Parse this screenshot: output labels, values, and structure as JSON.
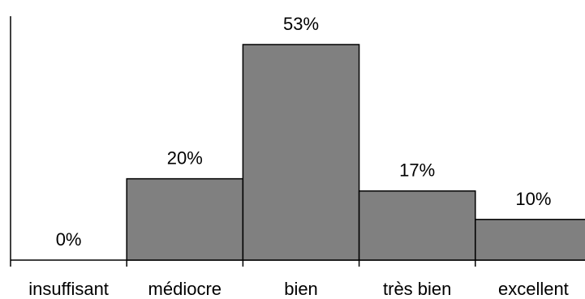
{
  "chart_data": {
    "type": "bar",
    "title": "",
    "xlabel": "",
    "ylabel": "",
    "categories": [
      "insuffisant",
      "médiocre",
      "bien",
      "très bien",
      "excellent"
    ],
    "values": [
      0,
      20,
      53,
      17,
      10
    ],
    "data_labels": [
      "0%",
      "20%",
      "53%",
      "17%",
      "10%"
    ],
    "unit": "%",
    "ylim": [
      0,
      53
    ],
    "grid": false,
    "legend": "none",
    "bar_color": "#808080",
    "edge_color": "#000000"
  }
}
